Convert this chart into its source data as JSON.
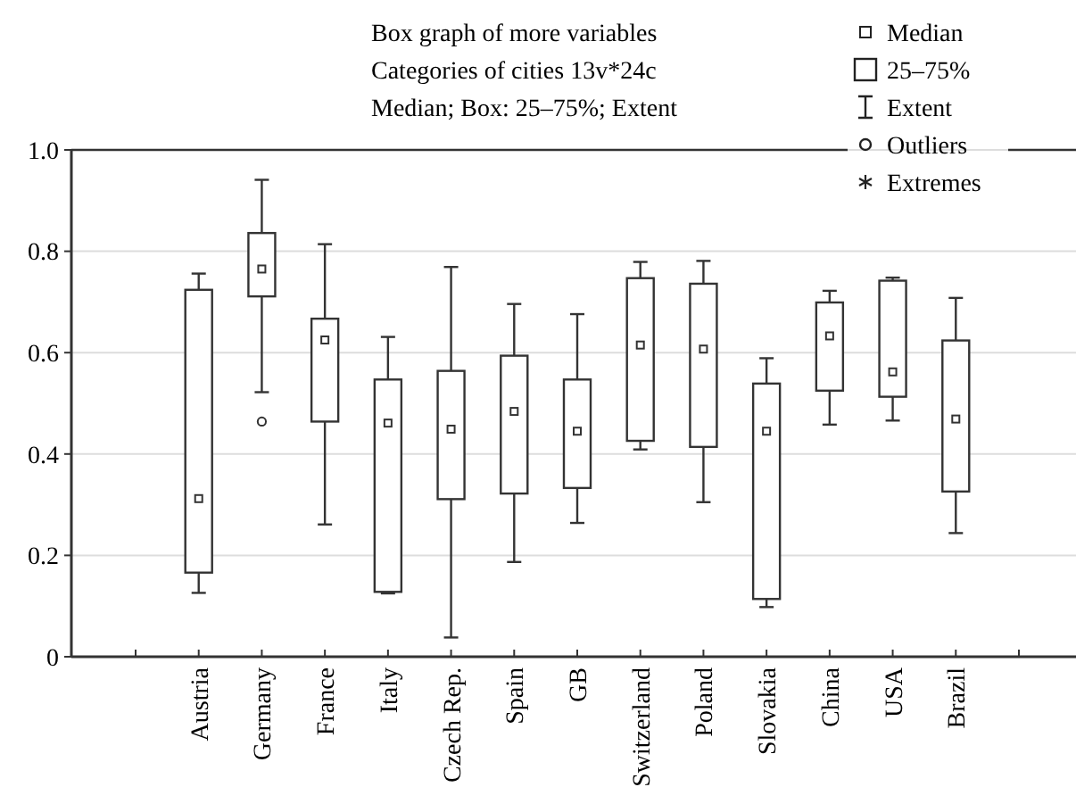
{
  "chart_data": {
    "type": "box",
    "title": "Box graph of more variables",
    "subtitle": "Categories of cities 13v*24c",
    "annotations": [
      "Median; Box: 25–75%; Extent",
      "Median",
      "25–75%",
      "Extent",
      "Outliers",
      "Extremes"
    ],
    "categories": [
      null,
      "Austria",
      "Germany",
      "France",
      "Italy",
      "Czech Rep.",
      "Spain",
      "GB",
      "Switzerland",
      "Poland",
      "Slovakia",
      "China",
      "USA",
      "Brazil",
      null
    ],
    "boxes": [
      null,
      {
        "low": 0.126,
        "q1": 0.166,
        "median": 0.312,
        "q3": 0.724,
        "high": 0.756
      },
      {
        "low": 0.522,
        "q1": 0.711,
        "median": 0.765,
        "q3": 0.836,
        "high": 0.941,
        "outliers": [
          0.464
        ]
      },
      {
        "low": 0.261,
        "q1": 0.464,
        "median": 0.625,
        "q3": 0.667,
        "high": 0.814
      },
      {
        "low": 0.125,
        "q1": 0.128,
        "median": 0.461,
        "q3": 0.547,
        "high": 0.631
      },
      {
        "low": 0.038,
        "q1": 0.311,
        "median": 0.449,
        "q3": 0.564,
        "high": 0.769
      },
      {
        "low": 0.187,
        "q1": 0.322,
        "median": 0.484,
        "q3": 0.594,
        "high": 0.696
      },
      {
        "low": 0.264,
        "q1": 0.333,
        "median": 0.445,
        "q3": 0.547,
        "high": 0.676
      },
      {
        "low": 0.409,
        "q1": 0.426,
        "median": 0.615,
        "q3": 0.747,
        "high": 0.779
      },
      {
        "low": 0.305,
        "q1": 0.414,
        "median": 0.607,
        "q3": 0.736,
        "high": 0.781
      },
      {
        "low": 0.098,
        "q1": 0.114,
        "median": 0.445,
        "q3": 0.539,
        "high": 0.589
      },
      {
        "low": 0.458,
        "q1": 0.525,
        "median": 0.633,
        "q3": 0.699,
        "high": 0.722
      },
      {
        "low": 0.466,
        "q1": 0.513,
        "median": 0.562,
        "q3": 0.742,
        "high": 0.748
      },
      {
        "low": 0.244,
        "q1": 0.326,
        "median": 0.469,
        "q3": 0.624,
        "high": 0.708
      },
      null
    ],
    "ylim": [
      0,
      1
    ],
    "yticks": [
      0,
      0.2,
      0.4,
      0.6,
      0.8,
      {
        "value": 1,
        "label": "1.0"
      }
    ],
    "grid": "y"
  }
}
